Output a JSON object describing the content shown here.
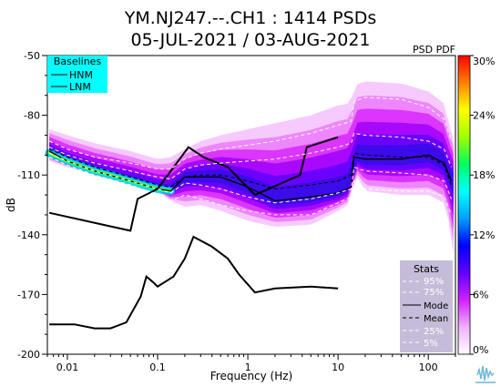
{
  "chart_data": {
    "type": "heatmap",
    "title_line1": "YM.NJ247.--.CH1 : 1414 PSDs",
    "title_line2": "05-JUL-2021 / 03-AUG-2021",
    "xlabel": "Frequency (Hz)",
    "ylabel": "dB",
    "x_scale": "log",
    "xlim": [
      0.006,
      200
    ],
    "ylim": [
      -200,
      -50
    ],
    "x_ticks": [
      {
        "value": 0.01,
        "label": "0.01"
      },
      {
        "value": 0.1,
        "label": "0.1"
      },
      {
        "value": 1,
        "label": "1"
      },
      {
        "value": 10,
        "label": "10"
      },
      {
        "value": 100,
        "label": "100"
      }
    ],
    "y_ticks": [
      {
        "value": -50,
        "label": "-50"
      },
      {
        "value": -80,
        "label": "-80"
      },
      {
        "value": -110,
        "label": "-110"
      },
      {
        "value": -140,
        "label": "-140"
      },
      {
        "value": -170,
        "label": "-170"
      },
      {
        "value": -200,
        "label": "-200"
      }
    ],
    "grid": false,
    "colorbar": {
      "label": "PSD PDF",
      "range": [
        0,
        30
      ],
      "ticks": [
        {
          "value": 30,
          "label": "30%"
        },
        {
          "value": 24,
          "label": "24%"
        },
        {
          "value": 18,
          "label": "18%"
        },
        {
          "value": 12,
          "label": "12%"
        },
        {
          "value": 6,
          "label": "6%"
        },
        {
          "value": 0,
          "label": "0%"
        }
      ],
      "colors": [
        "#ffffff",
        "#f0b0ff",
        "#d020ff",
        "#6000ff",
        "#0000ff",
        "#00a0ff",
        "#00ffff",
        "#00ff60",
        "#a0ff00",
        "#ffff00",
        "#ff8000",
        "#ff0000"
      ]
    },
    "baselines_legend": {
      "title": "Baselines",
      "placement": "top-left",
      "background": "#00ffff",
      "items": [
        {
          "name": "HNM",
          "style": "solid",
          "color": "#000000"
        },
        {
          "name": "LNM",
          "style": "solid",
          "color": "#000000"
        }
      ]
    },
    "stats_legend": {
      "title": "Stats",
      "placement": "bottom-right",
      "background": "#c4bcd8",
      "items": [
        {
          "name": "95%",
          "style": "dashed",
          "color": "#ffffff"
        },
        {
          "name": "75%",
          "style": "dashed",
          "color": "#ffffff"
        },
        {
          "name": "Mode",
          "style": "solid",
          "color": "#000000"
        },
        {
          "name": "Mean",
          "style": "dashed",
          "color": "#000000"
        },
        {
          "name": "25%",
          "style": "dashed",
          "color": "#ffffff"
        },
        {
          "name": "5%",
          "style": "dashed",
          "color": "#ffffff"
        }
      ]
    },
    "nhnm": {
      "x": [
        0.0063,
        0.05,
        0.06,
        0.1,
        0.22,
        0.32,
        0.6,
        1.2,
        3.8,
        4.5,
        10
      ],
      "y": [
        -129,
        -138,
        -122,
        -117,
        -96,
        -101,
        -106,
        -120,
        -110,
        -96,
        -91
      ]
    },
    "nlnm": {
      "x": [
        0.0063,
        0.012,
        0.02,
        0.03,
        0.045,
        0.065,
        0.075,
        0.09,
        0.1,
        0.15,
        0.2,
        0.25,
        0.4,
        0.6,
        0.8,
        1.2,
        2.0,
        5.0,
        10
      ],
      "y": [
        -185,
        -185,
        -187,
        -187,
        -184,
        -171,
        -161,
        -164,
        -166,
        -161,
        -152,
        -141,
        -146,
        -152,
        -160,
        -169,
        -167,
        -166,
        -167
      ]
    },
    "pdf_band": {
      "x": [
        0.0063,
        0.01,
        0.02,
        0.05,
        0.1,
        0.14,
        0.2,
        0.3,
        0.5,
        1,
        2,
        5,
        10,
        14,
        15,
        20,
        50,
        100,
        150,
        170,
        190
      ],
      "upper": [
        -87,
        -90,
        -94,
        -98,
        -102,
        -101,
        -97,
        -93,
        -90,
        -87,
        -84,
        -80,
        -75,
        -74,
        -65,
        -63,
        -64,
        -68,
        -74,
        -84,
        -92
      ],
      "lower": [
        -103,
        -106,
        -110,
        -114,
        -118,
        -123,
        -126,
        -125,
        -128,
        -133,
        -136,
        -135,
        -128,
        -124,
        -108,
        -118,
        -120,
        -120,
        -124,
        -134,
        -150
      ]
    },
    "series": [
      {
        "name": "95%",
        "style": "dashed",
        "color": "#ffffff",
        "x": [
          0.0063,
          0.01,
          0.02,
          0.05,
          0.1,
          0.14,
          0.2,
          0.3,
          0.5,
          1,
          2,
          5,
          10,
          14,
          15,
          20,
          50,
          100,
          150,
          180
        ],
        "y": [
          -93,
          -97,
          -101,
          -104,
          -107,
          -107,
          -102,
          -99,
          -97,
          -95,
          -93,
          -89,
          -85,
          -83,
          -73,
          -71,
          -72,
          -76,
          -82,
          -93
        ]
      },
      {
        "name": "75%",
        "style": "dashed",
        "color": "#ffffff",
        "x": [
          0.0063,
          0.01,
          0.02,
          0.05,
          0.1,
          0.14,
          0.2,
          0.3,
          0.5,
          1,
          2,
          5,
          10,
          14,
          15,
          20,
          50,
          100,
          150,
          180
        ],
        "y": [
          -96,
          -100,
          -104,
          -108,
          -111,
          -112,
          -107,
          -105,
          -104,
          -103,
          -102,
          -99,
          -96,
          -94,
          -89,
          -90,
          -91,
          -93,
          -97,
          -106
        ]
      },
      {
        "name": "Mode",
        "style": "solid",
        "color": "#000000",
        "x": [
          0.0063,
          0.01,
          0.02,
          0.05,
          0.1,
          0.14,
          0.2,
          0.3,
          0.5,
          1,
          2,
          5,
          10,
          14,
          15,
          20,
          50,
          100,
          150,
          180
        ],
        "y": [
          -98,
          -103,
          -108,
          -113,
          -117,
          -118,
          -111,
          -111,
          -111,
          -116,
          -123,
          -121,
          -119,
          -116,
          -101,
          -102,
          -102,
          -100,
          -104,
          -113
        ]
      },
      {
        "name": "Mean",
        "style": "dashed",
        "color": "#000000",
        "x": [
          0.0063,
          0.01,
          0.02,
          0.05,
          0.1,
          0.14,
          0.2,
          0.3,
          0.5,
          1,
          2,
          5,
          10,
          14,
          15,
          20,
          50,
          100,
          150,
          180
        ],
        "y": [
          -97,
          -101,
          -106,
          -111,
          -115,
          -116,
          -111,
          -110,
          -110,
          -113,
          -117,
          -115,
          -113,
          -110,
          -99,
          -100,
          -101,
          -101,
          -105,
          -115
        ]
      },
      {
        "name": "25%",
        "style": "dashed",
        "color": "#ffffff",
        "x": [
          0.0063,
          0.01,
          0.02,
          0.05,
          0.1,
          0.14,
          0.2,
          0.3,
          0.5,
          1,
          2,
          5,
          10,
          14,
          15,
          20,
          50,
          100,
          150,
          180
        ],
        "y": [
          -99,
          -103,
          -108,
          -113,
          -117,
          -119,
          -114,
          -115,
          -117,
          -121,
          -124,
          -122,
          -119,
          -117,
          -106,
          -108,
          -109,
          -110,
          -113,
          -122
        ]
      },
      {
        "name": "5%",
        "style": "dashed",
        "color": "#ffffff",
        "x": [
          0.0063,
          0.01,
          0.02,
          0.05,
          0.1,
          0.14,
          0.2,
          0.3,
          0.5,
          1,
          2,
          5,
          10,
          14,
          15,
          20,
          50,
          100,
          150,
          180
        ],
        "y": [
          -101,
          -105,
          -110,
          -115,
          -120,
          -123,
          -120,
          -122,
          -125,
          -128,
          -130,
          -130,
          -124,
          -121,
          -113,
          -117,
          -118,
          -118,
          -121,
          -130
        ]
      }
    ],
    "modal_ridge": {
      "x": [
        0.0063,
        0.01,
        0.02,
        0.03,
        0.05,
        0.1,
        0.14
      ],
      "y": [
        -99,
        -103,
        -108,
        -110,
        -113,
        -117,
        -118
      ]
    }
  }
}
